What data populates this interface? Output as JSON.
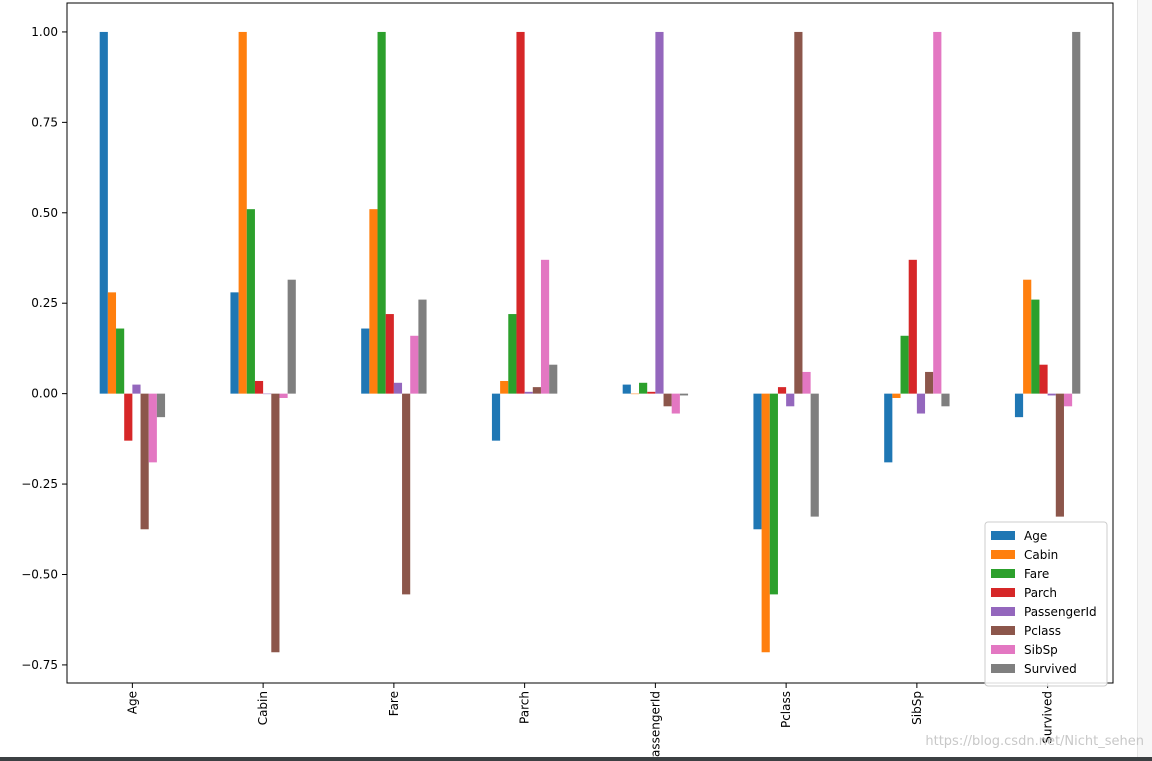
{
  "chart_data": {
    "type": "bar",
    "categories": [
      "Age",
      "Cabin",
      "Fare",
      "Parch",
      "PassengerId",
      "Pclass",
      "SibSp",
      "Survived"
    ],
    "series": [
      {
        "name": "Age",
        "color": "#1f77b4",
        "values": [
          1.0,
          0.28,
          0.18,
          -0.13,
          0.025,
          -0.375,
          -0.19,
          -0.065
        ]
      },
      {
        "name": "Cabin",
        "color": "#ff7f0e",
        "values": [
          0.28,
          1.0,
          0.51,
          0.035,
          0.0,
          -0.715,
          -0.012,
          0.315
        ]
      },
      {
        "name": "Fare",
        "color": "#2ca02c",
        "values": [
          0.18,
          0.51,
          1.0,
          0.22,
          0.03,
          -0.555,
          0.16,
          0.26
        ]
      },
      {
        "name": "Parch",
        "color": "#d62728",
        "values": [
          -0.13,
          0.035,
          0.22,
          1.0,
          0.005,
          0.018,
          0.37,
          0.08
        ]
      },
      {
        "name": "PassengerId",
        "color": "#9467bd",
        "values": [
          0.025,
          0.0,
          0.03,
          0.005,
          1.0,
          -0.035,
          -0.055,
          -0.005
        ]
      },
      {
        "name": "Pclass",
        "color": "#8c564b",
        "values": [
          -0.375,
          -0.715,
          -0.555,
          0.018,
          -0.035,
          1.0,
          0.06,
          -0.34
        ]
      },
      {
        "name": "SibSp",
        "color": "#e377c2",
        "values": [
          -0.19,
          -0.012,
          0.16,
          0.37,
          -0.055,
          0.06,
          1.0,
          -0.035
        ]
      },
      {
        "name": "Survived",
        "color": "#7f7f7f",
        "values": [
          -0.065,
          0.315,
          0.26,
          0.08,
          -0.005,
          -0.34,
          -0.035,
          1.0
        ]
      }
    ],
    "yticks": [
      "1.00",
      "0.75",
      "0.50",
      "0.25",
      "0.00",
      "−0.25",
      "−0.50",
      "−0.75"
    ],
    "ytick_values": [
      1.0,
      0.75,
      0.5,
      0.25,
      0.0,
      -0.25,
      -0.5,
      -0.75
    ],
    "ylim": [
      -0.8,
      1.08
    ],
    "xlabel_rotation": "vertical",
    "grid": false,
    "legend_position": "bottom-right"
  },
  "watermark": "https://blog.csdn.net/Nicht_sehen"
}
